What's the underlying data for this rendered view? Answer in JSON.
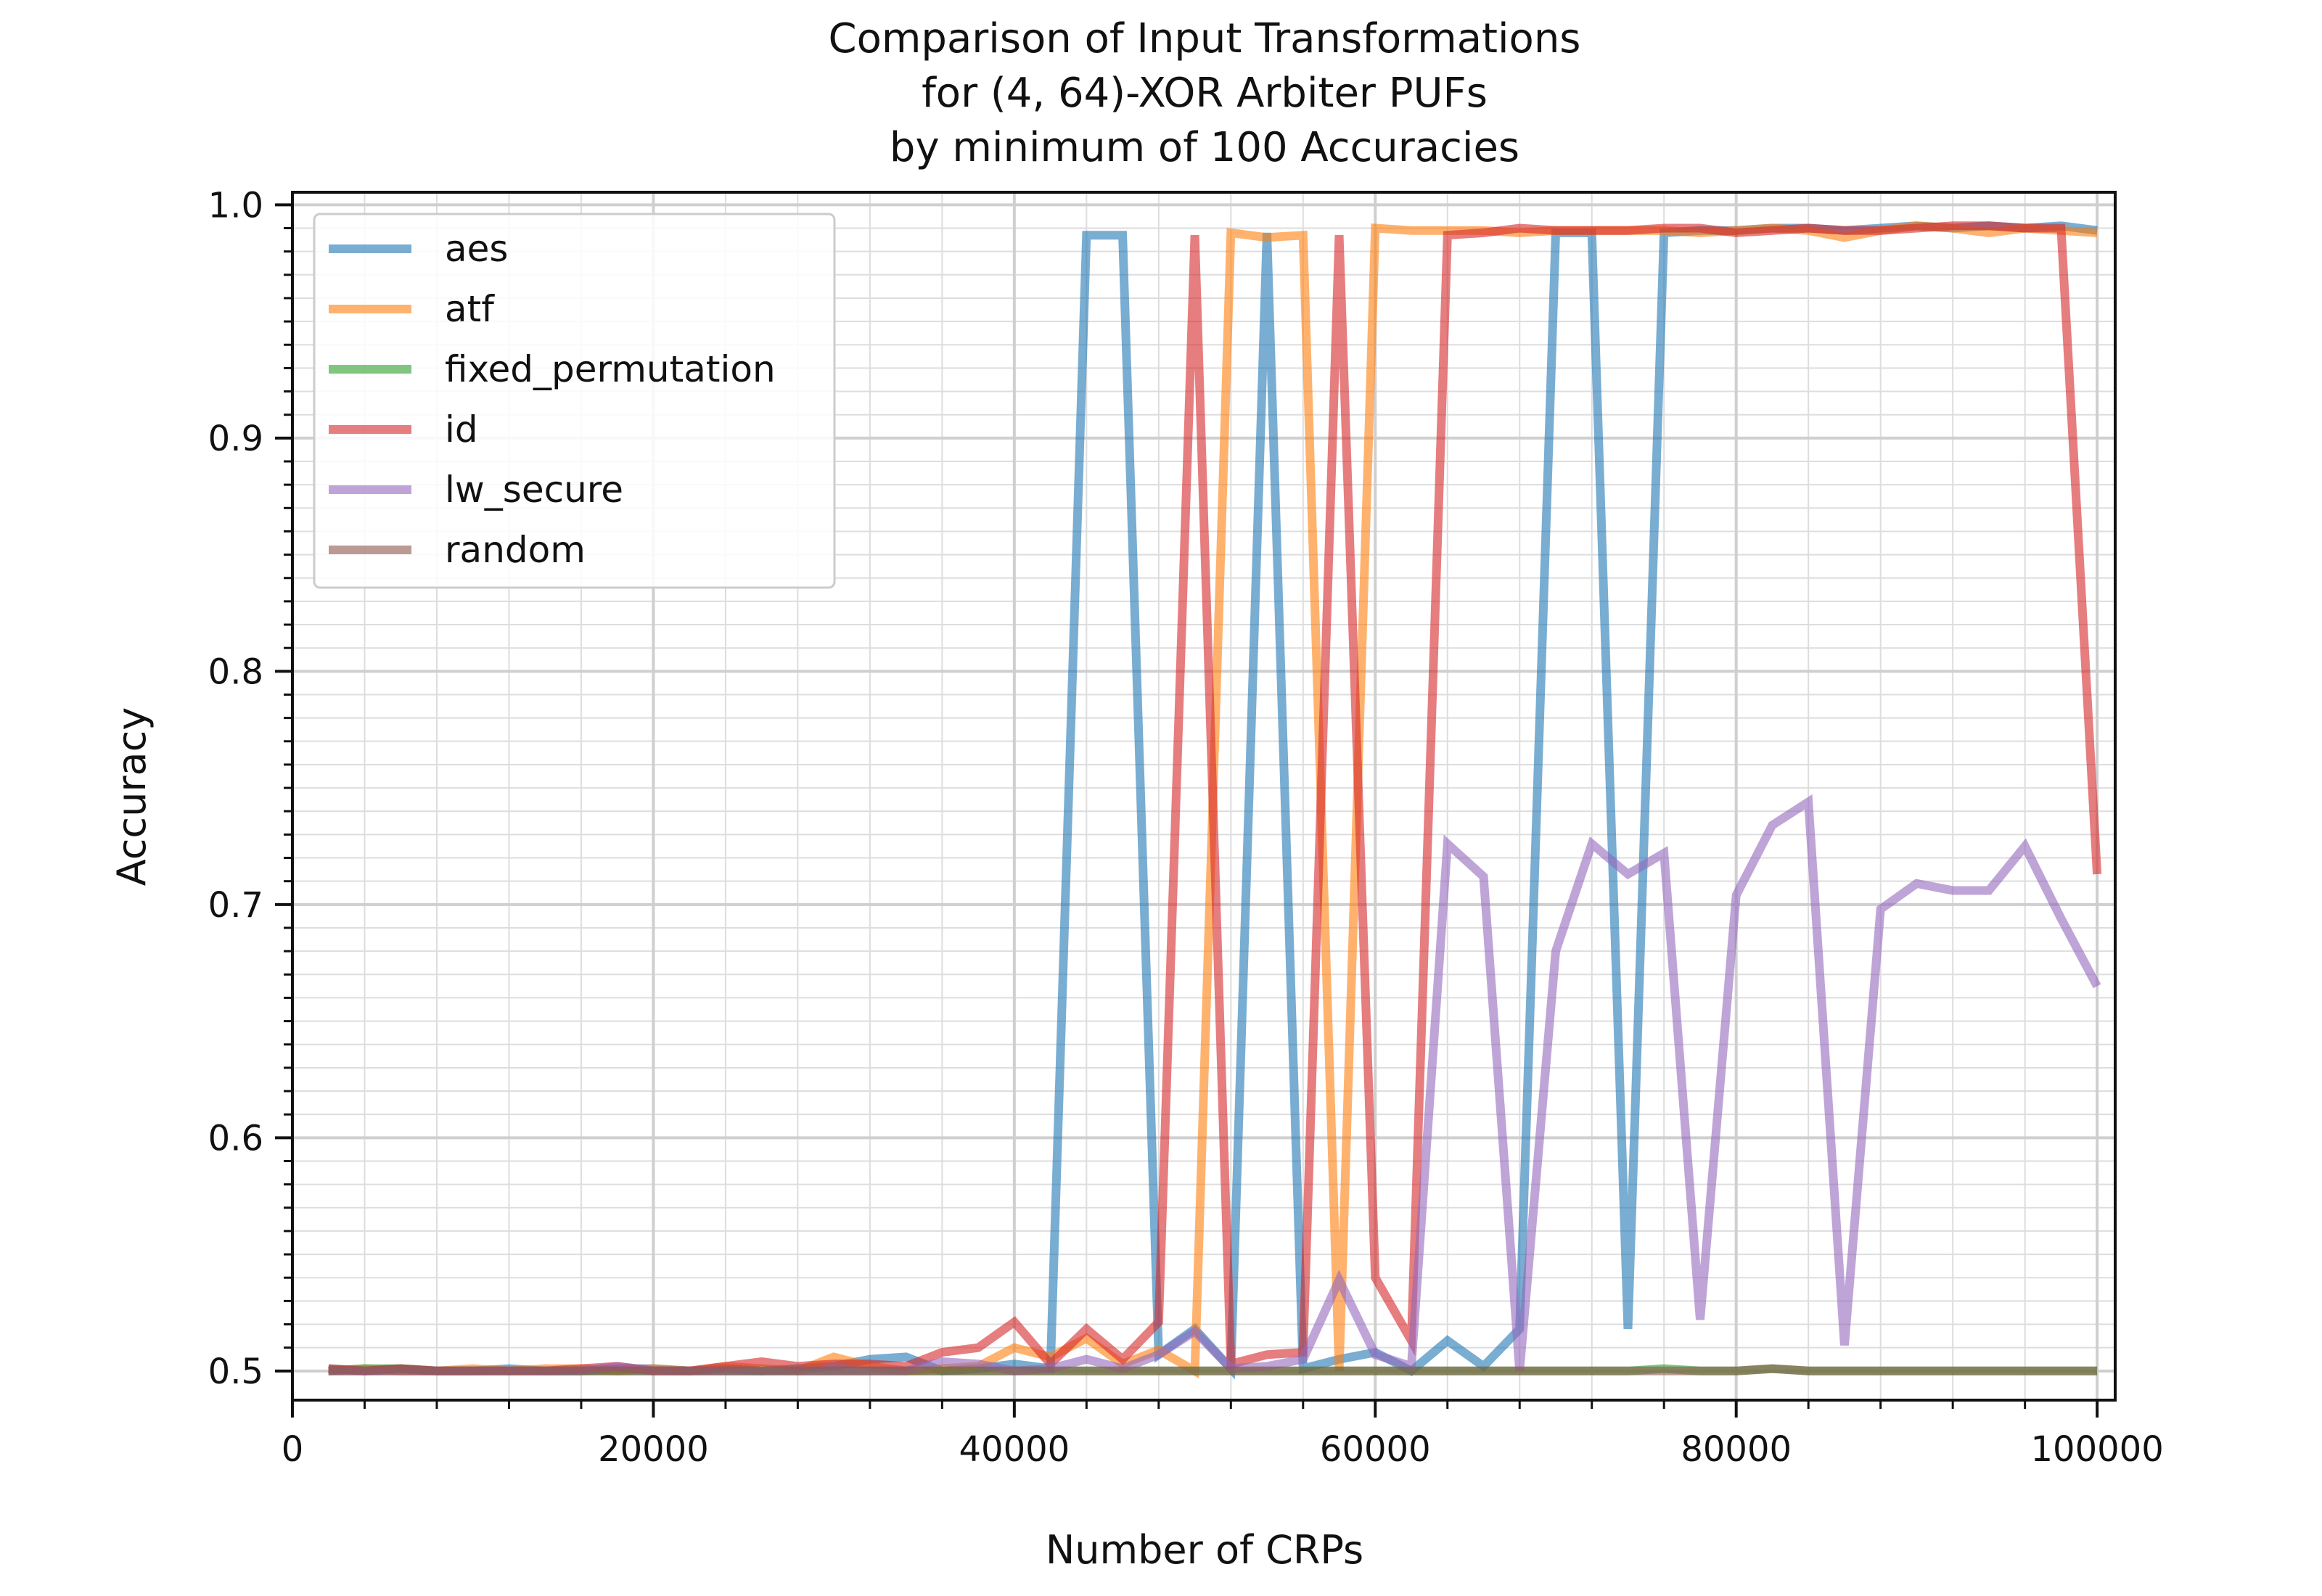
{
  "chart_data": {
    "type": "line",
    "title_lines": [
      "Comparison of Input Transformations",
      "for (4, 64)-XOR Arbiter PUFs",
      "by minimum of 100 Accuracies"
    ],
    "xlabel": "Number of CRPs",
    "ylabel": "Accuracy",
    "xlim": [
      0,
      100000
    ],
    "ylim": [
      0.5,
      1.0
    ],
    "xticks": [
      0,
      20000,
      40000,
      60000,
      80000,
      100000
    ],
    "xtick_labels": [
      "0",
      "20000",
      "40000",
      "60000",
      "80000",
      "100000"
    ],
    "yticks": [
      0.5,
      0.6,
      0.7,
      0.8,
      0.9,
      1.0
    ],
    "ytick_labels": [
      "0.5",
      "0.6",
      "0.7",
      "0.8",
      "0.9",
      "1.0"
    ],
    "grid": true,
    "minor_grid": true,
    "legend_position": "upper-left",
    "x": [
      2000,
      4000,
      6000,
      8000,
      10000,
      12000,
      14000,
      16000,
      18000,
      20000,
      22000,
      24000,
      26000,
      28000,
      30000,
      32000,
      34000,
      36000,
      38000,
      40000,
      42000,
      44000,
      46000,
      48000,
      50000,
      52000,
      54000,
      56000,
      58000,
      60000,
      62000,
      64000,
      66000,
      68000,
      70000,
      72000,
      74000,
      76000,
      78000,
      80000,
      82000,
      84000,
      86000,
      88000,
      90000,
      92000,
      94000,
      96000,
      98000,
      100000
    ],
    "series": [
      {
        "name": "aes",
        "color": "#1f77b4",
        "values": [
          0.501,
          0.5,
          0.501,
          0.5,
          0.5,
          0.501,
          0.5,
          0.5,
          0.501,
          0.501,
          0.5,
          0.501,
          0.5,
          0.501,
          0.502,
          0.505,
          0.506,
          0.5,
          0.501,
          0.503,
          0.501,
          0.987,
          0.987,
          0.507,
          0.518,
          0.501,
          0.988,
          0.501,
          0.505,
          0.508,
          0.5,
          0.513,
          0.502,
          0.518,
          0.988,
          0.988,
          0.518,
          0.988,
          0.989,
          0.989,
          0.99,
          0.99,
          0.989,
          0.99,
          0.991,
          0.99,
          0.991,
          0.99,
          0.991,
          0.989
        ]
      },
      {
        "name": "atf",
        "color": "#ff7f0e",
        "values": [
          0.5,
          0.501,
          0.5,
          0.5,
          0.501,
          0.5,
          0.501,
          0.501,
          0.5,
          0.501,
          0.5,
          0.502,
          0.501,
          0.5,
          0.506,
          0.502,
          0.5,
          0.501,
          0.502,
          0.51,
          0.506,
          0.514,
          0.503,
          0.509,
          0.5,
          0.988,
          0.986,
          0.987,
          0.5,
          0.99,
          0.989,
          0.989,
          0.989,
          0.988,
          0.989,
          0.989,
          0.989,
          0.989,
          0.988,
          0.989,
          0.99,
          0.989,
          0.986,
          0.989,
          0.991,
          0.99,
          0.988,
          0.99,
          0.989,
          0.988
        ]
      },
      {
        "name": "fixed_permutation",
        "color": "#2ca02c",
        "values": [
          0.5,
          0.501,
          0.501,
          0.5,
          0.5,
          0.5,
          0.5,
          0.5,
          0.5,
          0.5,
          0.5,
          0.5,
          0.5,
          0.5,
          0.5,
          0.5,
          0.5,
          0.5,
          0.5,
          0.5,
          0.5,
          0.5,
          0.5,
          0.5,
          0.5,
          0.5,
          0.5,
          0.5,
          0.5,
          0.5,
          0.5,
          0.5,
          0.5,
          0.5,
          0.5,
          0.5,
          0.5,
          0.501,
          0.5,
          0.5,
          0.501,
          0.5,
          0.5,
          0.5,
          0.5,
          0.5,
          0.5,
          0.5,
          0.5,
          0.5
        ]
      },
      {
        "name": "id",
        "color": "#d62728",
        "values": [
          0.501,
          0.5,
          0.501,
          0.5,
          0.5,
          0.5,
          0.5,
          0.501,
          0.502,
          0.5,
          0.5,
          0.502,
          0.504,
          0.502,
          0.503,
          0.503,
          0.502,
          0.508,
          0.51,
          0.521,
          0.503,
          0.518,
          0.505,
          0.521,
          0.987,
          0.503,
          0.507,
          0.508,
          0.987,
          0.54,
          0.513,
          0.987,
          0.988,
          0.99,
          0.989,
          0.989,
          0.989,
          0.99,
          0.99,
          0.988,
          0.989,
          0.99,
          0.989,
          0.989,
          0.99,
          0.991,
          0.991,
          0.99,
          0.99,
          0.713
        ]
      },
      {
        "name": "lw_secure",
        "color": "#9467bd",
        "values": [
          0.5,
          0.5,
          0.5,
          0.5,
          0.5,
          0.5,
          0.5,
          0.5,
          0.502,
          0.5,
          0.5,
          0.5,
          0.5,
          0.5,
          0.5,
          0.5,
          0.5,
          0.504,
          0.503,
          0.5,
          0.501,
          0.505,
          0.501,
          0.507,
          0.517,
          0.501,
          0.502,
          0.505,
          0.539,
          0.507,
          0.502,
          0.726,
          0.712,
          0.5,
          0.68,
          0.726,
          0.713,
          0.722,
          0.522,
          0.704,
          0.734,
          0.744,
          0.511,
          0.698,
          0.709,
          0.706,
          0.706,
          0.725,
          0.694,
          0.665
        ]
      },
      {
        "name": "random",
        "color": "#8c564b",
        "values": [
          0.5,
          0.5,
          0.5,
          0.5,
          0.5,
          0.5,
          0.5,
          0.5,
          0.5,
          0.5,
          0.5,
          0.5,
          0.5,
          0.5,
          0.5,
          0.5,
          0.5,
          0.5,
          0.5,
          0.5,
          0.5,
          0.5,
          0.5,
          0.5,
          0.5,
          0.5,
          0.5,
          0.5,
          0.5,
          0.5,
          0.5,
          0.5,
          0.5,
          0.5,
          0.5,
          0.5,
          0.5,
          0.5,
          0.5,
          0.5,
          0.501,
          0.5,
          0.5,
          0.5,
          0.5,
          0.5,
          0.5,
          0.5,
          0.5,
          0.5
        ]
      }
    ]
  }
}
